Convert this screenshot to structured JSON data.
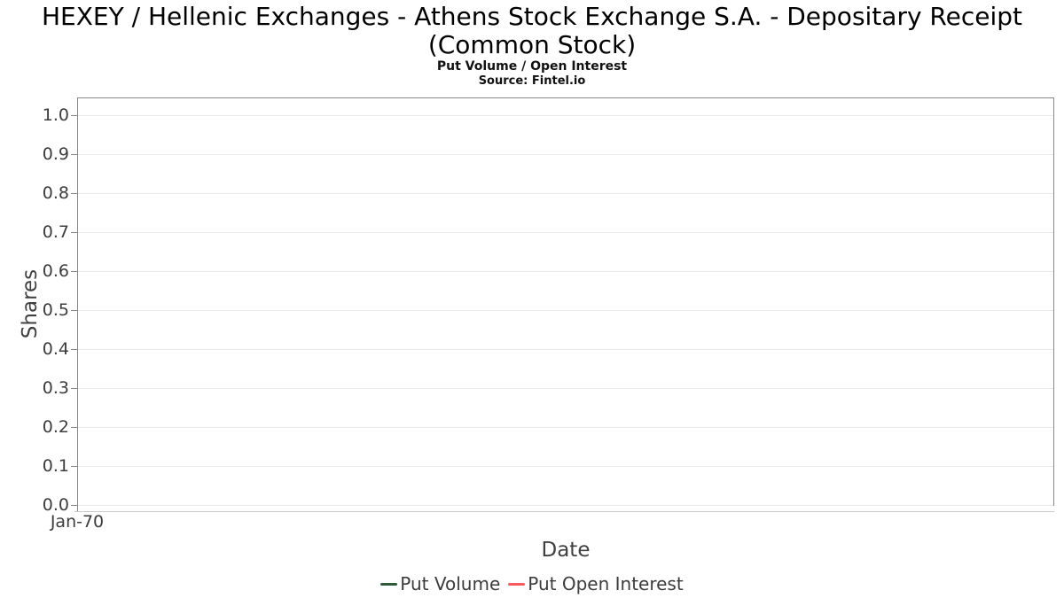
{
  "chart_data": {
    "type": "line",
    "title": "HEXEY / Hellenic Exchanges - Athens Stock Exchange S.A. - Depositary Receipt (Common Stock)",
    "title_lines": [
      "HEXEY / Hellenic Exchanges - Athens Stock Exchange S.A. - Depositary Receipt",
      "(Common Stock)"
    ],
    "subtitle": "Put Volume / Open Interest",
    "source": "Source: Fintel.io",
    "xlabel": "Date",
    "ylabel": "Shares",
    "x_ticks": [
      "Jan-70"
    ],
    "y_ticks": [
      "0.0",
      "0.1",
      "0.2",
      "0.3",
      "0.4",
      "0.5",
      "0.6",
      "0.7",
      "0.8",
      "0.9",
      "1.0"
    ],
    "ylim": [
      0.0,
      1.05
    ],
    "grid": "horizontal",
    "legend_position": "bottom",
    "series": [
      {
        "name": "Put Volume",
        "color": "#2d5a38",
        "values": []
      },
      {
        "name": "Put Open Interest",
        "color": "#f9595f",
        "values": []
      }
    ],
    "colors": {
      "axis_border": "#85878a",
      "gridline": "#e8e8e8",
      "tick_text": "#3c3c3c",
      "title_text": "#000000"
    }
  }
}
